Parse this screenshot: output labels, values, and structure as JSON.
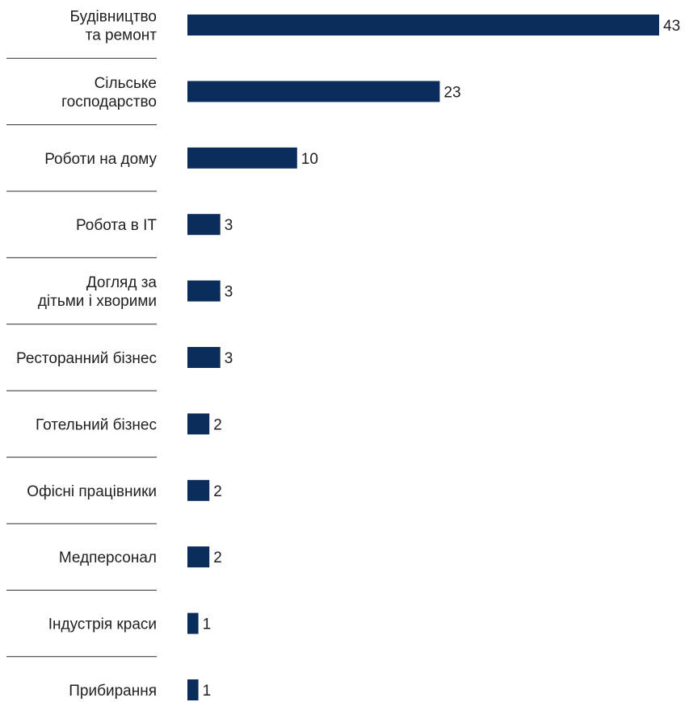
{
  "colors": {
    "bar": "#0b2d5b",
    "text": "#1f1f1f",
    "separator": "#2b2b2b"
  },
  "chart_data": {
    "type": "bar",
    "orientation": "horizontal",
    "categories": [
      [
        "Будівництво",
        "та ремонт"
      ],
      [
        "Сільське",
        "господарство"
      ],
      [
        "Роботи на дому"
      ],
      [
        "Робота в IT"
      ],
      [
        "Догляд за",
        "дітьми і хворими"
      ],
      [
        "Ресторанний бізнес"
      ],
      [
        "Готельний бізнес"
      ],
      [
        "Офісні працівники"
      ],
      [
        "Медперсонал"
      ],
      [
        "Індустрія краси"
      ],
      [
        "Прибирання"
      ]
    ],
    "values": [
      43,
      23,
      10,
      3,
      3,
      3,
      2,
      2,
      2,
      1,
      1
    ],
    "value_labels": [
      "43",
      "23",
      "10",
      "3",
      "3",
      "3",
      "2",
      "2",
      "2",
      "1",
      "1"
    ],
    "xlim": [
      0,
      43
    ],
    "grid": false,
    "legend": "none"
  }
}
